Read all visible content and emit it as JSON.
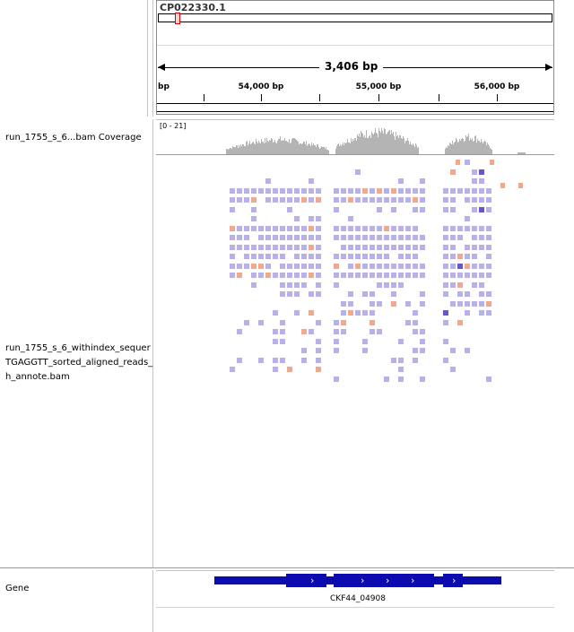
{
  "ruler": {
    "chromosome": "CP022330.1",
    "span_label": "3,406 bp",
    "start_tick_label": "bp",
    "ticks": [
      {
        "label": "54,000 bp",
        "pos": 0.264
      },
      {
        "label": "55,000 bp",
        "pos": 0.558
      },
      {
        "label": "56,000 bp",
        "pos": 0.855
      }
    ],
    "minor_ticks": [
      0.12,
      0.41,
      0.71
    ]
  },
  "tracks": {
    "coverage_label": "run_1755_s_6...bam Coverage",
    "coverage_range": "[0 - 21]",
    "alignment_label_lines": [
      "run_1755_s_6_withindex_sequer",
      "TGAGGTT_sorted_aligned_reads_",
      "h_annote.bam"
    ],
    "gene_label": "Gene"
  },
  "gene": {
    "name": "CKF44_04908",
    "strand_glyph": "›"
  },
  "colors": {
    "read": "#b8b0e8",
    "mismatch": "#f2a88e",
    "gene": "#0b0bb0",
    "coverage": "#b4b4b4",
    "locator": "#e00000"
  }
}
